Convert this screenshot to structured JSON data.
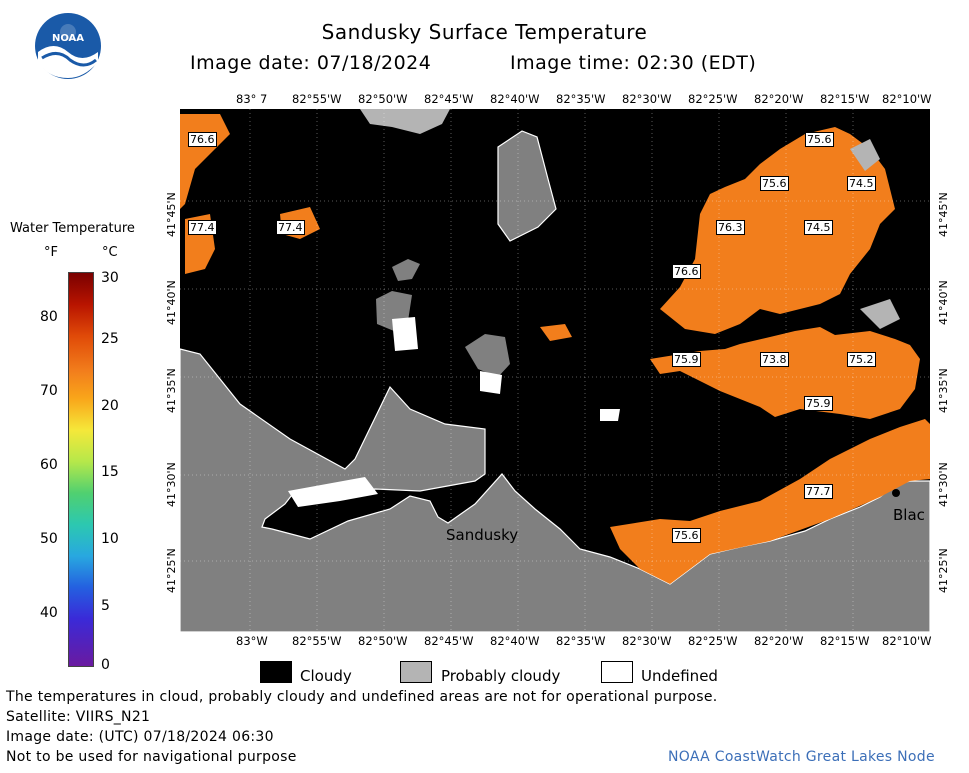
{
  "header": {
    "title": "Sandusky Surface Temperature",
    "image_date": "Image date: 07/18/2024",
    "image_time": "Image time: 02:30 (EDT)"
  },
  "logo": {
    "text": "NOAA"
  },
  "colorbar": {
    "title": "Water Temperature",
    "unit_f": "°F",
    "unit_c": "°C",
    "f_ticks": [
      "80",
      "70",
      "60",
      "50",
      "40"
    ],
    "c_ticks": [
      "30",
      "25",
      "20",
      "15",
      "10",
      "5",
      "0"
    ]
  },
  "axes": {
    "lon_top": [
      "83° 7",
      "82°55'W",
      "82°50'W",
      "82°45'W",
      "82°40'W",
      "82°35'W",
      "82°30'W",
      "82°25'W",
      "82°20'W",
      "82°15'W",
      "82°10'W"
    ],
    "lon_bottom": [
      "83°W",
      "82°55'W",
      "82°50'W",
      "82°45'W",
      "82°40'W",
      "82°35'W",
      "82°30'W",
      "82°25'W",
      "82°20'W",
      "82°15'W",
      "82°10'W"
    ],
    "lat": [
      "41°45'N",
      "41°40'N",
      "41°35'N",
      "41°30'N",
      "41°25'N"
    ]
  },
  "map": {
    "place_labels": [
      "Sandusky",
      "Blac"
    ],
    "temperature_labels": [
      "76.6",
      "77.4",
      "77.4",
      "75.6",
      "75.6",
      "74.5",
      "76.3",
      "74.5",
      "76.6",
      "75.9",
      "73.8",
      "75.2",
      "75.9",
      "77.7",
      "75.6"
    ],
    "colors": {
      "cloud": "#000000",
      "land": "#808080",
      "probably_cloudy": "#b4b4b4",
      "undefined": "#ffffff",
      "water_warm": "#f27e1c"
    }
  },
  "legend": {
    "cloudy": "Cloudy",
    "probably_cloudy": "Probably cloudy",
    "undefined": "Undefined"
  },
  "footer": {
    "disclaimer": "The temperatures in cloud, probably cloudy and undefined areas are not for operational purpose.",
    "satellite": "Satellite: VIIRS_N21",
    "utc_date": "Image date: (UTC) 07/18/2024  06:30",
    "nav_warning": "Not to be used for navigational purpose",
    "credit": "NOAA CoastWatch Great Lakes Node"
  }
}
